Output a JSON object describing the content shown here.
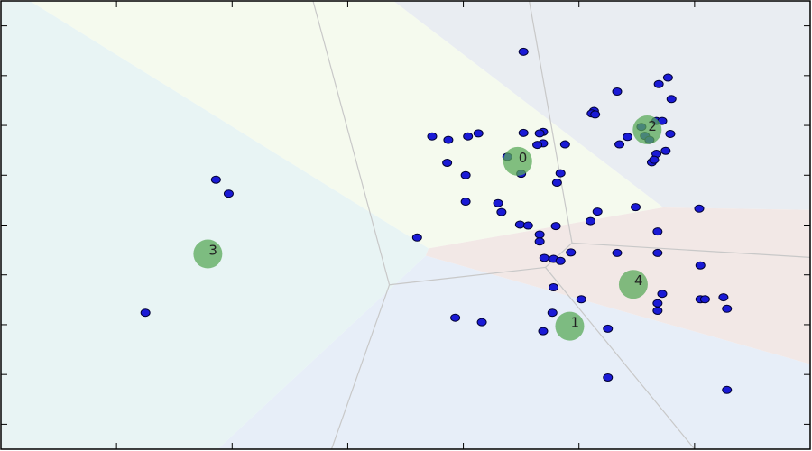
{
  "chart_data": {
    "type": "scatter",
    "title": "",
    "xlabel": "",
    "ylabel": "",
    "xlim": [
      -5,
      2
    ],
    "ylim": [
      -4.5,
      4.5
    ],
    "grid": false,
    "region_colors": {
      "0": "#f5faee",
      "1": "#e7eef8",
      "2": "#e9edf2",
      "3": "#e8f4f4",
      "4": "#f2e8e6"
    },
    "voronoi_edges": [
      [
        [
          -2.3,
          4.5
        ],
        [
          -1.64,
          -1.2
        ]
      ],
      [
        [
          -1.64,
          -1.2
        ],
        [
          -2.14,
          -4.5
        ]
      ],
      [
        [
          -1.64,
          -1.2
        ],
        [
          -0.29,
          -0.85
        ]
      ],
      [
        [
          -0.29,
          -0.85
        ],
        [
          -0.06,
          -0.36
        ]
      ],
      [
        [
          -0.29,
          -0.85
        ],
        [
          1.0,
          -4.5
        ]
      ],
      [
        [
          -0.06,
          -0.36
        ],
        [
          -0.43,
          4.5
        ]
      ],
      [
        [
          -0.06,
          -0.36
        ],
        [
          2.0,
          -0.65
        ]
      ]
    ],
    "centroids": [
      {
        "label": "0",
        "x": -0.53,
        "y": 1.28,
        "color": "#5aaa5a"
      },
      {
        "label": "1",
        "x": -0.08,
        "y": -2.03,
        "color": "#5aaa5a"
      },
      {
        "label": "2",
        "x": 0.59,
        "y": 1.91,
        "color": "#5aaa5a"
      },
      {
        "label": "3",
        "x": -3.21,
        "y": -0.58,
        "color": "#5aaa5a"
      },
      {
        "label": "4",
        "x": 0.47,
        "y": -1.19,
        "color": "#5aaa5a"
      }
    ],
    "points": [
      [
        -0.48,
        3.48
      ],
      [
        -0.87,
        1.84
      ],
      [
        -1.13,
        1.71
      ],
      [
        -1.14,
        1.25
      ],
      [
        -0.96,
        1.78
      ],
      [
        -1.27,
        1.78
      ],
      [
        -0.98,
        1.0
      ],
      [
        -0.48,
        1.85
      ],
      [
        -0.31,
        1.87
      ],
      [
        -0.34,
        1.84
      ],
      [
        -0.62,
        1.37
      ],
      [
        -0.31,
        1.64
      ],
      [
        -0.36,
        1.61
      ],
      [
        -0.5,
        1.03
      ],
      [
        -0.16,
        1.04
      ],
      [
        -0.19,
        0.85
      ],
      [
        -0.12,
        1.62
      ],
      [
        -0.98,
        0.47
      ],
      [
        -0.7,
        0.44
      ],
      [
        -0.67,
        0.26
      ],
      [
        -0.51,
        0.01
      ],
      [
        -0.44,
        -0.01
      ],
      [
        -0.34,
        -0.19
      ],
      [
        -0.2,
        -0.02
      ],
      [
        -0.34,
        -0.33
      ],
      [
        -1.4,
        -0.25
      ],
      [
        -0.3,
        -0.66
      ],
      [
        -0.22,
        -0.68
      ],
      [
        -0.16,
        -0.72
      ],
      [
        -0.07,
        -0.55
      ],
      [
        -0.22,
        -1.25
      ],
      [
        0.02,
        -1.49
      ],
      [
        -0.23,
        -1.76
      ],
      [
        -0.31,
        -2.13
      ],
      [
        -0.84,
        -1.95
      ],
      [
        -1.07,
        -1.86
      ],
      [
        0.25,
        -2.08
      ],
      [
        0.25,
        -3.06
      ],
      [
        0.16,
        0.27
      ],
      [
        0.1,
        0.08
      ],
      [
        0.33,
        2.68
      ],
      [
        0.13,
        2.29
      ],
      [
        0.11,
        2.24
      ],
      [
        0.14,
        2.22
      ],
      [
        0.35,
        1.62
      ],
      [
        0.42,
        1.77
      ],
      [
        0.54,
        1.97
      ],
      [
        0.69,
        2.83
      ],
      [
        0.77,
        2.96
      ],
      [
        0.8,
        2.53
      ],
      [
        0.67,
        2.09
      ],
      [
        0.72,
        2.09
      ],
      [
        0.67,
        1.43
      ],
      [
        0.79,
        1.83
      ],
      [
        0.75,
        1.49
      ],
      [
        0.63,
        1.26
      ],
      [
        0.65,
        1.31
      ],
      [
        0.57,
        1.79
      ],
      [
        0.61,
        1.71
      ],
      [
        0.49,
        0.36
      ],
      [
        1.04,
        0.33
      ],
      [
        0.68,
        -0.13
      ],
      [
        0.33,
        -0.56
      ],
      [
        0.68,
        -0.56
      ],
      [
        1.05,
        -0.81
      ],
      [
        0.72,
        -1.38
      ],
      [
        0.68,
        -1.57
      ],
      [
        0.68,
        -1.72
      ],
      [
        1.05,
        -1.49
      ],
      [
        1.09,
        -1.49
      ],
      [
        1.25,
        -1.45
      ],
      [
        1.28,
        -1.68
      ],
      [
        1.28,
        -3.31
      ],
      [
        -3.14,
        0.91
      ],
      [
        -3.03,
        0.63
      ],
      [
        -3.75,
        -1.76
      ]
    ]
  }
}
